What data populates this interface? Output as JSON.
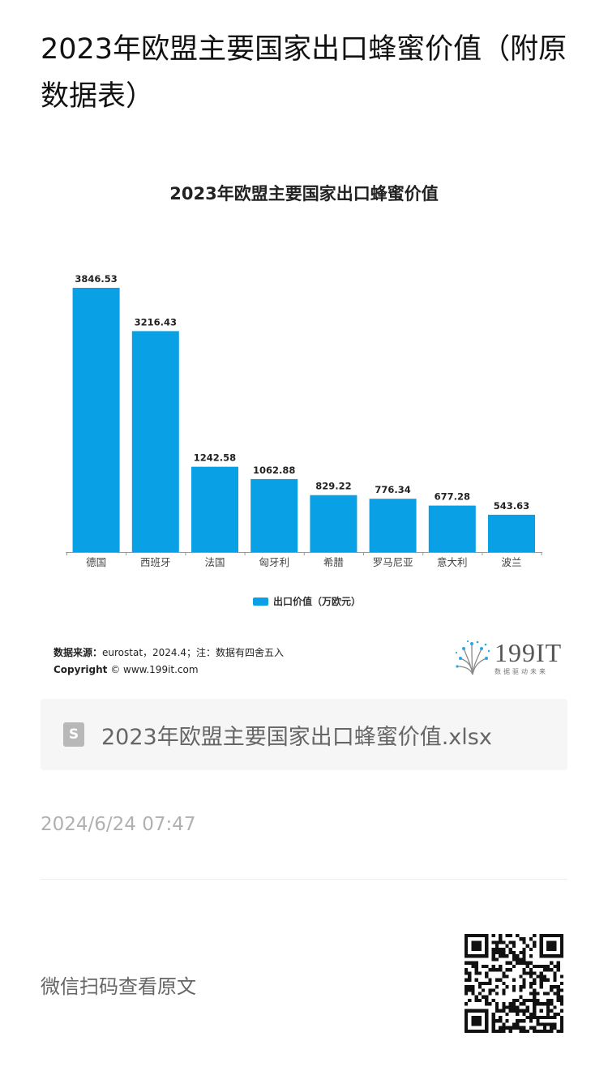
{
  "page": {
    "title": "2023年欧盟主要国家出口蜂蜜价值（附原数据表）"
  },
  "chart_data": {
    "type": "bar",
    "title": "2023年欧盟主要国家出口蜂蜜价值",
    "categories": [
      "德国",
      "西班牙",
      "法国",
      "匈牙利",
      "希腊",
      "罗马尼亚",
      "意大利",
      "波兰"
    ],
    "series": [
      {
        "name": "出口价值（万欧元）",
        "values": [
          3846.53,
          3216.43,
          1242.58,
          1062.88,
          829.22,
          776.34,
          677.28,
          543.63
        ]
      }
    ],
    "data_labels": [
      "3846.53",
      "3216.43",
      "1242.58",
      "1062.88",
      "829.22",
      "776.34",
      "677.28",
      "543.63"
    ],
    "ylim": [
      0,
      3846.53
    ],
    "color": "#0aa0e6",
    "grid": false,
    "legend_position": "bottom-center"
  },
  "source": {
    "label": "数据来源：",
    "text": "eurostat，2024.4；注：数据有四舍五入",
    "copyright_label": "Copyright",
    "copyright_text": "© www.199it.com"
  },
  "logo": {
    "name": "199IT",
    "tagline": "数据驱动未来",
    "icon": "dandelion-logo-icon"
  },
  "attachment": {
    "icon": "spreadsheet-file-icon",
    "icon_letter": "S",
    "filename": "2023年欧盟主要国家出口蜂蜜价值.xlsx"
  },
  "meta": {
    "timestamp": "2024/6/24 07:47"
  },
  "footer": {
    "qr_caption": "微信扫码查看原文",
    "qr_icon": "qr-code-icon"
  }
}
